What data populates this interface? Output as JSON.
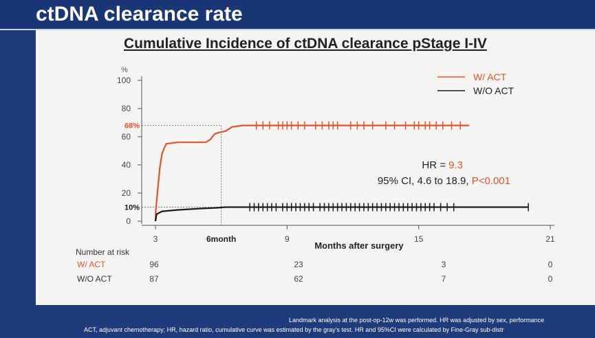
{
  "slide": {
    "title": "ctDNA clearance rate",
    "subtitle": "Cumulative Incidence of ctDNA clearance pStage I-IV",
    "footnote_1": "Landmark analysis at the post-op-12w was performed. HR was adjusted by sex, performance",
    "footnote_2": "ACT, adjuvant chemotherapy; HR, hazard ratio, cumulative curve was estimated by the gray's test. HR and 95%CI were calculated by Fine-Gray sub-distr"
  },
  "chart_data": {
    "type": "line",
    "title": "Cumulative Incidence of ctDNA clearance pStage I-IV",
    "xlabel": "Months after surgery",
    "ylabel": "%",
    "xlim": [
      3,
      21
    ],
    "ylim": [
      0,
      100
    ],
    "x_ticks": [
      3,
      9,
      15,
      21
    ],
    "x_tick_labels": [
      "3",
      "9",
      "15",
      "21"
    ],
    "y_ticks": [
      0,
      20,
      40,
      60,
      80,
      100
    ],
    "y_tick_labels": [
      "0",
      "20",
      "40",
      "60",
      "80",
      "100"
    ],
    "six_month_label": "6month",
    "six_month_x": 6,
    "series": [
      {
        "name": "W/ ACT",
        "color": "#e2532c",
        "points": [
          [
            3,
            0
          ],
          [
            3.02,
            8
          ],
          [
            3.1,
            22
          ],
          [
            3.2,
            38
          ],
          [
            3.3,
            48
          ],
          [
            3.4,
            52
          ],
          [
            3.5,
            55
          ],
          [
            4,
            56
          ],
          [
            5,
            56
          ],
          [
            5.3,
            56
          ],
          [
            5.5,
            58
          ],
          [
            5.7,
            62
          ],
          [
            5.9,
            63
          ],
          [
            6.2,
            64
          ],
          [
            6.5,
            67
          ],
          [
            7,
            68
          ],
          [
            17.3,
            68
          ]
        ],
        "censor_x": [
          7.6,
          7.9,
          8.2,
          8.6,
          8.8,
          9.0,
          9.2,
          9.5,
          9.8,
          10.3,
          10.6,
          10.9,
          11.1,
          11.3,
          11.9,
          12.2,
          12.5,
          12.9,
          13.5,
          13.9,
          14.4,
          14.8,
          15.0,
          15.3,
          15.5,
          15.8,
          16.1,
          16.5,
          16.9
        ]
      },
      {
        "name": "W/O ACT",
        "color": "#1a1a1a",
        "points": [
          [
            3,
            0
          ],
          [
            3.05,
            5
          ],
          [
            3.3,
            7
          ],
          [
            4,
            8
          ],
          [
            5,
            9
          ],
          [
            5.8,
            9.5
          ],
          [
            6.2,
            10
          ],
          [
            20,
            10
          ]
        ],
        "censor_x": [
          7.3,
          7.5,
          7.7,
          7.9,
          8.1,
          8.3,
          8.5,
          8.8,
          9.0,
          9.2,
          9.4,
          9.6,
          9.8,
          10.0,
          10.2,
          10.5,
          10.7,
          10.9,
          11.1,
          11.3,
          11.5,
          11.7,
          11.9,
          12.1,
          12.3,
          12.5,
          12.7,
          12.9,
          13.1,
          13.3,
          13.5,
          13.7,
          13.9,
          14.1,
          14.3,
          14.5,
          14.7,
          14.9,
          15.1,
          15.3,
          15.5,
          15.7,
          16.0,
          16.3,
          16.6,
          20
        ]
      }
    ],
    "reference_lines": [
      {
        "y": 68,
        "label": "68%"
      },
      {
        "y": 10,
        "label": "10%"
      }
    ],
    "legend": {
      "position": "top-right",
      "entries": [
        "W/ ACT",
        "W/O ACT"
      ]
    },
    "annotation": {
      "hr_prefix": "HR = ",
      "hr_value": "9.3",
      "ci_text": "95% CI, 4.6 to 18.9, ",
      "p_text": "P<0.001"
    },
    "risk_table": {
      "header": "Number at risk",
      "times": [
        3,
        9,
        15,
        21
      ],
      "rows": [
        {
          "label": "W/ ACT",
          "values": [
            "96",
            "23",
            "3",
            "0"
          ]
        },
        {
          "label": "W/O ACT",
          "values": [
            "87",
            "62",
            "7",
            "0"
          ]
        }
      ]
    }
  }
}
